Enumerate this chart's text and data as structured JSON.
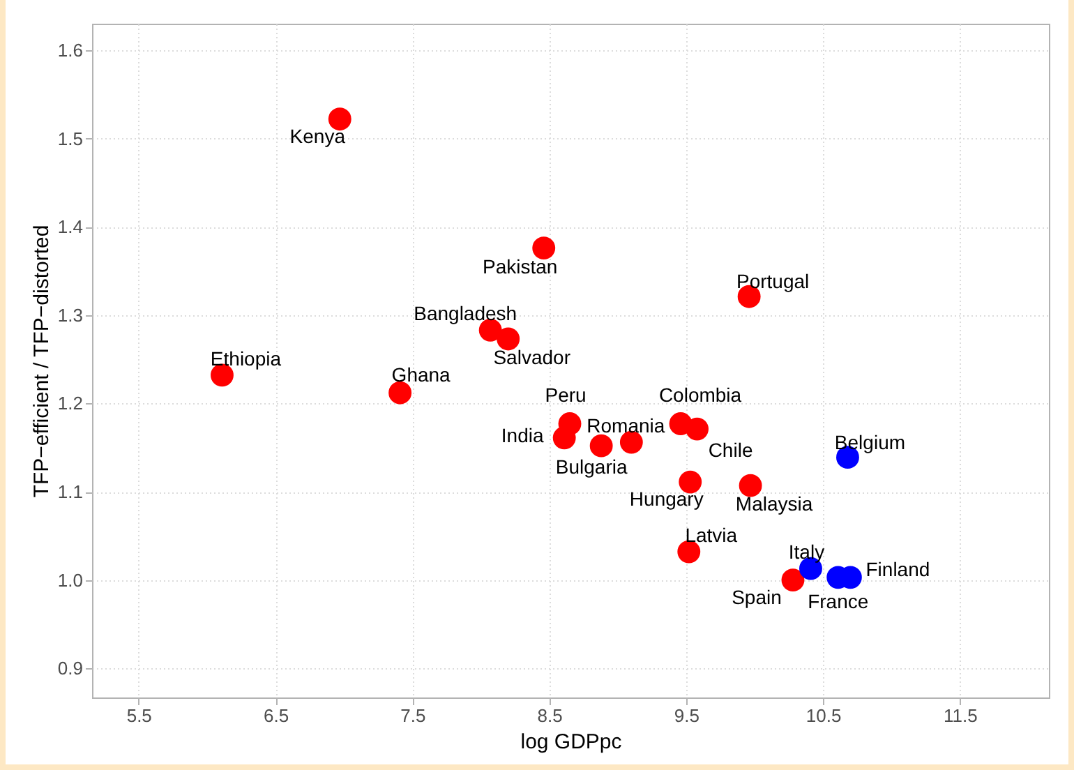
{
  "chart_data": {
    "type": "scatter",
    "xlabel": "log GDPpc",
    "ylabel": "TFP−efficient / TFP−distorted",
    "xlim": [
      5.16,
      12.15
    ],
    "xticks": [
      5.5,
      6.5,
      7.5,
      8.5,
      9.5,
      10.5,
      11.5
    ],
    "ylim": [
      0.867,
      1.63
    ],
    "yticks": [
      0.9,
      {
        "value": 1.0,
        "label": "1.0"
      },
      1.1,
      1.2,
      1.3,
      1.4,
      1.5,
      1.6
    ],
    "grid": true,
    "marker": "circle",
    "series": [
      {
        "color": "#ff0000",
        "x": [
          6.97,
          8.46,
          9.96,
          8.07,
          8.2,
          6.11,
          7.41,
          8.65,
          8.61,
          8.88,
          9.1,
          9.46,
          9.58,
          9.53,
          9.97,
          9.52,
          10.28
        ],
        "values": [
          1.522,
          1.376,
          1.321,
          1.283,
          1.273,
          1.232,
          1.212,
          1.177,
          1.161,
          1.152,
          1.156,
          1.177,
          1.171,
          1.111,
          1.107,
          1.032,
          1.0
        ]
      },
      {
        "color": "#0000ff",
        "x": [
          10.68,
          10.41,
          10.61,
          10.7
        ],
        "values": [
          1.139,
          1.013,
          1.003,
          1.003
        ]
      }
    ],
    "annotations": [
      {
        "text": "Kenya",
        "x": 6.97,
        "y": 1.522
      },
      {
        "text": "Pakistan",
        "x": 8.46,
        "y": 1.376
      },
      {
        "text": "Portugal",
        "x": 9.96,
        "y": 1.321
      },
      {
        "text": "Bangladesh",
        "x": 8.07,
        "y": 1.283
      },
      {
        "text": "Salvador",
        "x": 8.2,
        "y": 1.273
      },
      {
        "text": "Ethiopia",
        "x": 6.11,
        "y": 1.232
      },
      {
        "text": "Ghana",
        "x": 7.41,
        "y": 1.212
      },
      {
        "text": "Peru",
        "x": 8.65,
        "y": 1.177
      },
      {
        "text": "India",
        "x": 8.61,
        "y": 1.161
      },
      {
        "text": "Bulgaria",
        "x": 8.88,
        "y": 1.152
      },
      {
        "text": "Romania",
        "x": 9.1,
        "y": 1.156
      },
      {
        "text": "Colombia",
        "x": 9.46,
        "y": 1.177
      },
      {
        "text": "Chile",
        "x": 9.58,
        "y": 1.171
      },
      {
        "text": "Hungary",
        "x": 9.53,
        "y": 1.111
      },
      {
        "text": "Malaysia",
        "x": 9.97,
        "y": 1.107
      },
      {
        "text": "Latvia",
        "x": 9.52,
        "y": 1.032
      },
      {
        "text": "Spain",
        "x": 10.28,
        "y": 1.0
      },
      {
        "text": "Belgium",
        "x": 10.68,
        "y": 1.139
      },
      {
        "text": "Italy",
        "x": 10.41,
        "y": 1.013
      },
      {
        "text": "France",
        "x": 10.61,
        "y": 1.003
      },
      {
        "text": "Finland",
        "x": 10.7,
        "y": 1.003
      }
    ]
  }
}
